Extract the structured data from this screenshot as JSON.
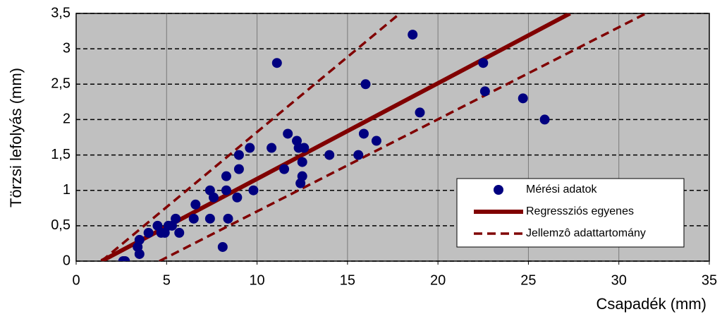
{
  "chart_data": {
    "type": "scatter",
    "xlabel": "Csapadék (mm)",
    "ylabel": "Törzsi lefolyás (mm)",
    "xlim": [
      0,
      35
    ],
    "ylim": [
      0,
      3.5
    ],
    "xticks": [
      0,
      5,
      10,
      15,
      20,
      25,
      30,
      35
    ],
    "yticks": [
      0,
      {
        "value": 0.5,
        "label": "0,5"
      },
      1,
      {
        "value": 1.5,
        "label": "1,5"
      },
      2,
      {
        "value": 2.5,
        "label": "2,5"
      },
      3,
      {
        "value": 3.5,
        "label": "3,5"
      }
    ],
    "grid": true,
    "background": "#c0c0c0",
    "legend": "lower right",
    "series": [
      {
        "name": "Mérési adatok",
        "color": "#000080",
        "style": "markers",
        "x": [
          2.6,
          2.7,
          3.4,
          3.5,
          3.5,
          4.0,
          4.5,
          4.7,
          4.9,
          5.1,
          5.3,
          5.5,
          5.7,
          6.5,
          6.6,
          7.4,
          7.4,
          7.6,
          8.1,
          8.3,
          8.3,
          8.4,
          8.9,
          9.0,
          9.0,
          9.6,
          9.8,
          10.8,
          11.1,
          11.5,
          11.7,
          12.2,
          12.3,
          12.4,
          12.5,
          12.5,
          12.6,
          14.0,
          15.6,
          15.9,
          16.0,
          16.6,
          18.6,
          19.0,
          22.5,
          22.6,
          24.7,
          25.9
        ],
        "values": [
          0,
          0,
          0.2,
          0.3,
          0.1,
          0.4,
          0.5,
          0.4,
          0.4,
          0.5,
          0.5,
          0.6,
          0.4,
          0.6,
          0.8,
          1.0,
          0.6,
          0.9,
          0.2,
          1.2,
          1.0,
          0.6,
          0.9,
          1.3,
          1.5,
          1.6,
          1.0,
          1.6,
          2.8,
          1.3,
          1.8,
          1.7,
          1.6,
          1.1,
          1.2,
          1.4,
          1.6,
          1.5,
          1.5,
          1.8,
          2.5,
          1.7,
          3.2,
          2.1,
          2.8,
          2.4,
          2.3,
          2.0
        ]
      },
      {
        "name": "Regressziós egyenes",
        "color": "#800000",
        "style": "solid",
        "x": [
          1.4,
          27.3
        ],
        "values": [
          0,
          3.5
        ]
      },
      {
        "name": "Jellemzô adattartomány",
        "color": "#800000",
        "style": "dashed",
        "x": [
          1.4,
          17.9,
          null,
          4.6,
          31.5
        ],
        "values": [
          0,
          3.5,
          null,
          0,
          3.5
        ]
      }
    ]
  }
}
